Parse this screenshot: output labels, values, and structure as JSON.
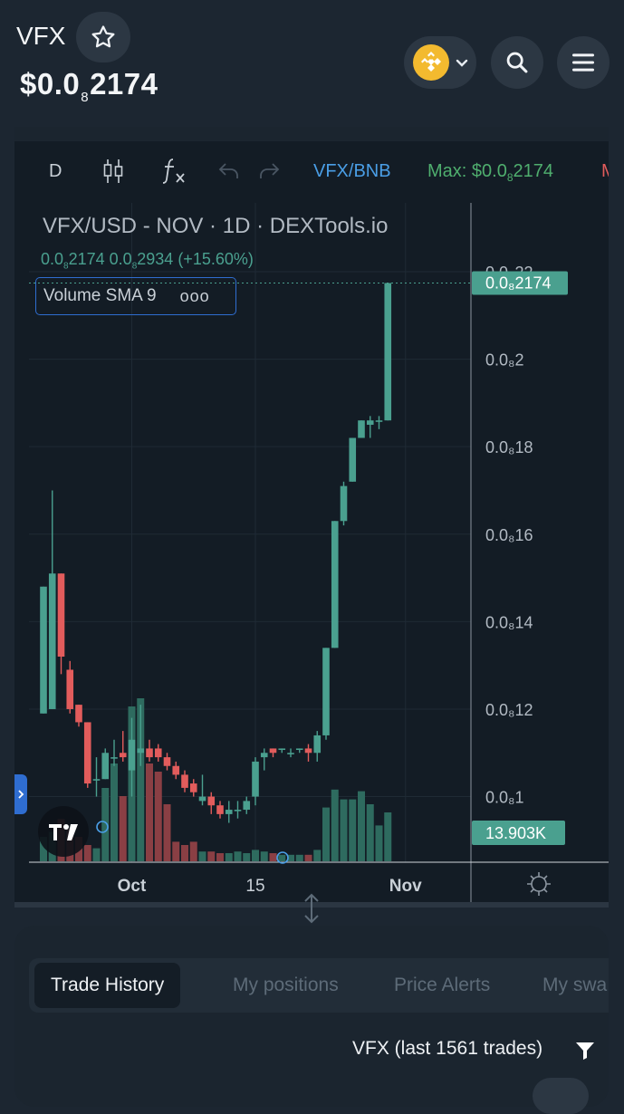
{
  "header": {
    "token_symbol": "VFX",
    "price_prefix": "$0.0",
    "price_zeros": "8",
    "price_digits": "2174",
    "chain_name": "BNB Chain",
    "icons": {
      "favorite": "star-icon",
      "chain": "bnb-chain-icon",
      "dropdown": "chevron-down-icon",
      "search": "search-icon",
      "menu": "hamburger-menu-icon"
    }
  },
  "toolbar": {
    "interval": "D",
    "pair": "VFX/BNB",
    "max_prefix": "Max: $0.0",
    "max_zeros": "8",
    "max_digits": "2174",
    "icons": [
      "candlestick-icon",
      "fx-icon",
      "undo-icon",
      "redo-icon"
    ]
  },
  "legend": {
    "symbol": "VFX/USD",
    "sep1": "-",
    "name": "NOV",
    "dot1": "·",
    "interval": "1D",
    "dot2": "·",
    "source": "DEXTools.io",
    "value_a_prefix": "0.0",
    "value_a_zeros": "8",
    "value_a_digits": "2174",
    "value_b_prefix": "0.0",
    "value_b_zeros": "8",
    "value_b_digits": "2934",
    "change": "(+15.60%)",
    "study": "Volume SMA 9",
    "study_menu": "ooo"
  },
  "colors": {
    "up": "#4aa08f",
    "down": "#e25c5c",
    "volume_up": "#2e6b5f",
    "volume_down": "#8a3f44",
    "accent_blue": "#4a9ee6",
    "legend_green": "#4aa08f",
    "max_green": "#4fae6e",
    "background": "#131c25"
  },
  "chart_data": {
    "type": "candlestick",
    "title": "VFX/USD - NOV · 1D · DEXTools.io",
    "y_unit_note": "values shown as 0.0₈X",
    "y_ticks": [
      {
        "value": 0.22,
        "label": "0.0₈22"
      },
      {
        "value": 0.2,
        "label": "0.0₈2"
      },
      {
        "value": 0.18,
        "label": "0.0₈18"
      },
      {
        "value": 0.16,
        "label": "0.0₈16"
      },
      {
        "value": 0.14,
        "label": "0.0₈14"
      },
      {
        "value": 0.12,
        "label": "0.0₈12"
      },
      {
        "value": 0.1,
        "label": "0.0₈1"
      }
    ],
    "ylim": [
      0.085,
      0.226
    ],
    "x_ticks": [
      {
        "index": 10,
        "label": "Oct"
      },
      {
        "index": 24,
        "label": "15"
      },
      {
        "index": 41,
        "label": "Nov"
      }
    ],
    "last_price_label": "0.0₈2174",
    "last_price": 0.2174,
    "volume_label": "13.903K",
    "candles": [
      {
        "o": 0.119,
        "h": 0.148,
        "l": 0.119,
        "c": 0.148,
        "v": 0.15
      },
      {
        "o": 0.12,
        "h": 0.17,
        "l": 0.12,
        "c": 0.151,
        "v": 0.18
      },
      {
        "o": 0.151,
        "h": 0.151,
        "l": 0.128,
        "c": 0.132,
        "v": 0.26
      },
      {
        "o": 0.129,
        "h": 0.131,
        "l": 0.119,
        "c": 0.12,
        "v": 0.2
      },
      {
        "o": 0.121,
        "h": 0.121,
        "l": 0.116,
        "c": 0.117,
        "v": 0.15
      },
      {
        "o": 0.117,
        "h": 0.117,
        "l": 0.102,
        "c": 0.103,
        "v": 0.1
      },
      {
        "o": 0.104,
        "h": 0.109,
        "l": 0.1,
        "c": 0.104,
        "v": 0.08
      },
      {
        "o": 0.104,
        "h": 0.111,
        "l": 0.104,
        "c": 0.11,
        "v": 0.45
      },
      {
        "o": 0.109,
        "h": 0.113,
        "l": 0.107,
        "c": 0.109,
        "v": 0.6
      },
      {
        "o": 0.11,
        "h": 0.115,
        "l": 0.108,
        "c": 0.109,
        "v": 0.4
      },
      {
        "o": 0.106,
        "h": 0.118,
        "l": 0.1,
        "c": 0.113,
        "v": 0.95
      },
      {
        "o": 0.11,
        "h": 0.121,
        "l": 0.107,
        "c": 0.111,
        "v": 1.0
      },
      {
        "o": 0.111,
        "h": 0.113,
        "l": 0.108,
        "c": 0.109,
        "v": 0.6
      },
      {
        "o": 0.111,
        "h": 0.112,
        "l": 0.108,
        "c": 0.109,
        "v": 0.55
      },
      {
        "o": 0.109,
        "h": 0.11,
        "l": 0.106,
        "c": 0.107,
        "v": 0.35
      },
      {
        "o": 0.107,
        "h": 0.108,
        "l": 0.104,
        "c": 0.105,
        "v": 0.12
      },
      {
        "o": 0.105,
        "h": 0.106,
        "l": 0.101,
        "c": 0.102,
        "v": 0.1
      },
      {
        "o": 0.103,
        "h": 0.104,
        "l": 0.1,
        "c": 0.101,
        "v": 0.12
      },
      {
        "o": 0.099,
        "h": 0.105,
        "l": 0.098,
        "c": 0.1,
        "v": 0.06
      },
      {
        "o": 0.1,
        "h": 0.101,
        "l": 0.096,
        "c": 0.098,
        "v": 0.06
      },
      {
        "o": 0.098,
        "h": 0.099,
        "l": 0.095,
        "c": 0.096,
        "v": 0.05
      },
      {
        "o": 0.096,
        "h": 0.099,
        "l": 0.094,
        "c": 0.097,
        "v": 0.05
      },
      {
        "o": 0.097,
        "h": 0.099,
        "l": 0.095,
        "c": 0.097,
        "v": 0.06
      },
      {
        "o": 0.097,
        "h": 0.1,
        "l": 0.096,
        "c": 0.099,
        "v": 0.05
      },
      {
        "o": 0.1,
        "h": 0.109,
        "l": 0.098,
        "c": 0.108,
        "v": 0.07
      },
      {
        "o": 0.109,
        "h": 0.111,
        "l": 0.106,
        "c": 0.11,
        "v": 0.06
      },
      {
        "o": 0.111,
        "h": 0.111,
        "l": 0.109,
        "c": 0.11,
        "v": 0.05
      },
      {
        "o": 0.111,
        "h": 0.111,
        "l": 0.11,
        "c": 0.111,
        "v": 0.04
      },
      {
        "o": 0.11,
        "h": 0.111,
        "l": 0.109,
        "c": 0.11,
        "v": 0.04
      },
      {
        "o": 0.111,
        "h": 0.111,
        "l": 0.11,
        "c": 0.111,
        "v": 0.04
      },
      {
        "o": 0.111,
        "h": 0.112,
        "l": 0.108,
        "c": 0.11,
        "v": 0.04
      },
      {
        "o": 0.11,
        "h": 0.115,
        "l": 0.108,
        "c": 0.114,
        "v": 0.07
      },
      {
        "o": 0.114,
        "h": 0.134,
        "l": 0.113,
        "c": 0.134,
        "v": 0.33
      },
      {
        "o": 0.134,
        "h": 0.163,
        "l": 0.134,
        "c": 0.163,
        "v": 0.44
      },
      {
        "o": 0.163,
        "h": 0.172,
        "l": 0.162,
        "c": 0.171,
        "v": 0.38
      },
      {
        "o": 0.172,
        "h": 0.182,
        "l": 0.172,
        "c": 0.182,
        "v": 0.38
      },
      {
        "o": 0.182,
        "h": 0.186,
        "l": 0.182,
        "c": 0.186,
        "v": 0.43
      },
      {
        "o": 0.185,
        "h": 0.187,
        "l": 0.182,
        "c": 0.186,
        "v": 0.35
      },
      {
        "o": 0.186,
        "h": 0.187,
        "l": 0.184,
        "c": 0.186,
        "v": 0.22
      },
      {
        "o": 0.186,
        "h": 0.2174,
        "l": 0.186,
        "c": 0.2174,
        "v": 0.3
      }
    ]
  },
  "bottom": {
    "tabs": [
      "Trade History",
      "My positions",
      "Price Alerts",
      "My swa"
    ],
    "active_tab": 0,
    "trades_label": "VFX (last 1561 trades)"
  }
}
